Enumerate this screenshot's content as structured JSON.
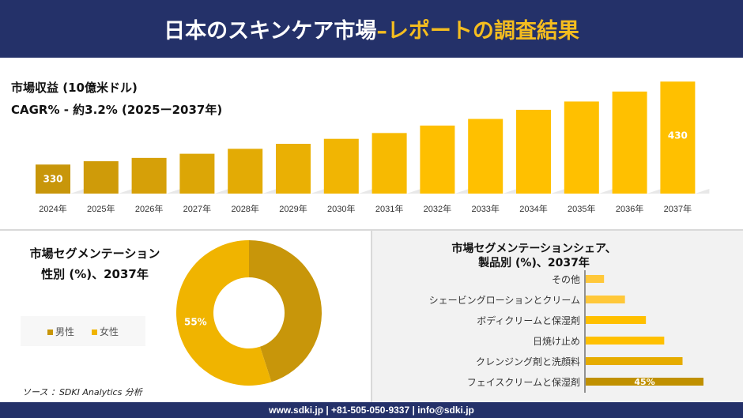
{
  "header": {
    "title_main": "日本のスキンケア市場 ",
    "title_accent": "–レポートの調査結果"
  },
  "revenue": {
    "label": "市場収益 (10億米ドル)",
    "cagr": "CAGR% - 約3.2% (2025ー2037年)"
  },
  "chart_data": [
    {
      "type": "bar",
      "categories": [
        "2024年",
        "2025年",
        "2026年",
        "2027年",
        "2028年",
        "2029年",
        "2030年",
        "2031年",
        "2032年",
        "2033年",
        "2034年",
        "2035年",
        "2036年",
        "2037年"
      ],
      "values": [
        330,
        334,
        338,
        343,
        349,
        355,
        361,
        368,
        377,
        385,
        396,
        406,
        418,
        430
      ],
      "data_labels": {
        "0": "330",
        "13": "430"
      },
      "colors": [
        "#c8960a",
        "#ffc000"
      ]
    },
    {
      "type": "pie",
      "title": "市場セグメンテーション 性別 (%)、2037年",
      "categories": [
        "男性",
        "女性"
      ],
      "values": [
        45,
        55
      ],
      "colors": [
        "#c8960a",
        "#f0b400"
      ],
      "data_labels": {
        "1": "55%"
      },
      "legend": "left"
    },
    {
      "type": "bar",
      "orientation": "horizontal",
      "title": "市場セグメンテーションシェア、製品別 (%)、2037年",
      "categories": [
        "その他",
        "シェービングローションとクリーム",
        "ボディクリームと保湿剤",
        "日焼け止め",
        "クレンジング剤と洗顔料",
        "フェイスクリームと保湿剤"
      ],
      "values": [
        7,
        15,
        23,
        30,
        37,
        45
      ],
      "data_labels": {
        "5": "45%"
      },
      "colors": [
        "#ffc83a",
        "#ffc83a",
        "#ffc000",
        "#ffc000",
        "#e6ac00",
        "#c09000"
      ]
    }
  ],
  "gender": {
    "title1": "市場セグメンテーション",
    "title2": "性別 (%)、2037年"
  },
  "product": {
    "title1": "市場セグメンテーションシェア、",
    "title2": "製品別 (%)、2037年"
  },
  "source": "ソース ：SDKI Analytics 分析",
  "footer": "www.sdki.jp | +81-505-050-9337 | info@sdki.jp"
}
